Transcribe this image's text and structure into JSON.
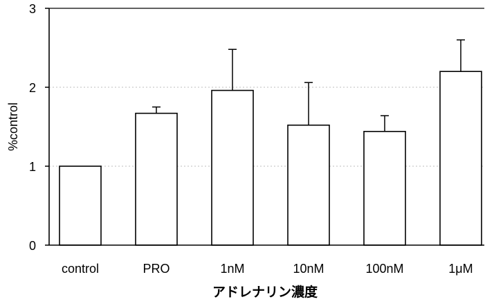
{
  "chart_data": {
    "type": "bar",
    "categories": [
      "control",
      "PRO",
      "1nM",
      "10nM",
      "100nM",
      "1μM"
    ],
    "values": [
      1.0,
      1.67,
      1.96,
      1.52,
      1.44,
      2.2
    ],
    "errors": [
      0.0,
      0.08,
      0.52,
      0.54,
      0.2,
      0.4
    ],
    "title": "",
    "xlabel": "アドレナリン濃度",
    "ylabel": "%control",
    "ylim": [
      0,
      3
    ],
    "yticks": [
      "0",
      "1",
      "2",
      "3"
    ],
    "grid": "horizontal dotted",
    "bar_fill": "#ffffff",
    "bar_stroke": "#000000",
    "grid_color": "#bdbdbd"
  }
}
